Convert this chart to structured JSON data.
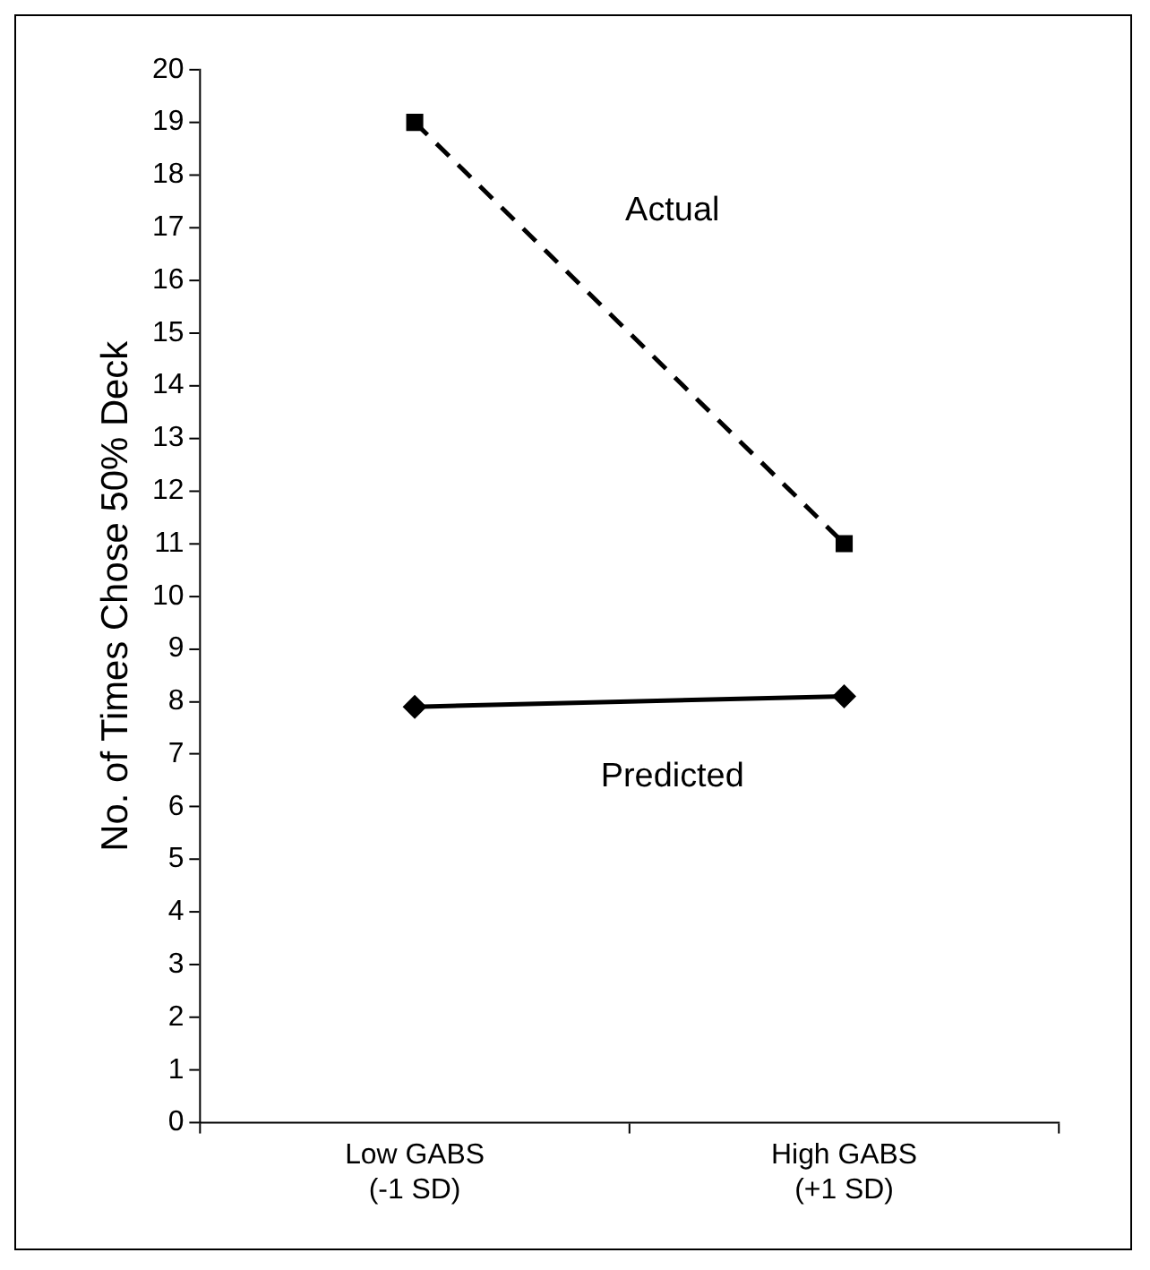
{
  "chart_data": {
    "type": "line",
    "ylabel": "No. of Times Chose 50% Deck",
    "categories": [
      "Low GABS\n(-1 SD)",
      "High GABS\n(+1 SD)"
    ],
    "series": [
      {
        "name": "Actual",
        "color": "#000000",
        "values": [
          19,
          11
        ],
        "marker": "square",
        "line_style": "dashed"
      },
      {
        "name": "Predicted",
        "color": "#000000",
        "values": [
          7.9,
          8.1
        ],
        "marker": "diamond",
        "line_style": "solid"
      }
    ],
    "ylim": [
      0,
      20
    ],
    "yticks": [
      0,
      1,
      2,
      3,
      4,
      5,
      6,
      7,
      8,
      9,
      10,
      11,
      12,
      13,
      14,
      15,
      16,
      17,
      18,
      19,
      20
    ],
    "grid": false,
    "legend": false
  }
}
